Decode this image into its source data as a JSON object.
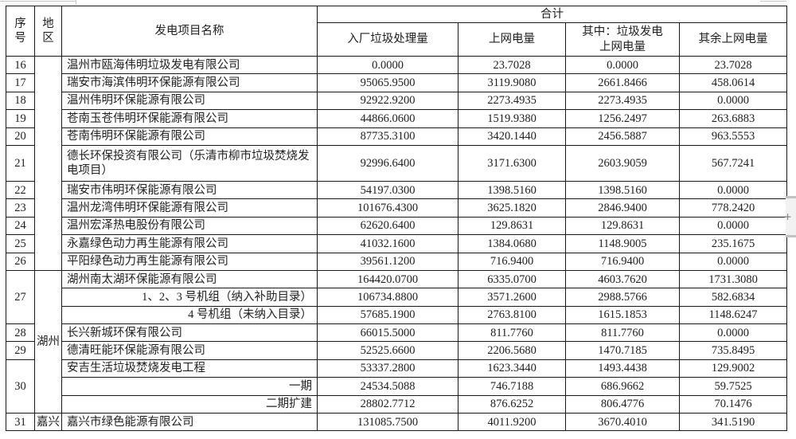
{
  "table": {
    "headers": {
      "seq": "序号",
      "region": "地区",
      "project": "发电项目名称",
      "total": "合计",
      "sub": [
        "入厂垃圾处理量",
        "上网电量",
        "其中：垃圾发电\n上网电量",
        "其余上网电量"
      ]
    },
    "rows": [
      {
        "seq": "16",
        "region": "",
        "regionSpan": 11,
        "name": "温州市瓯海伟明垃圾发电有限公司",
        "values": [
          "0.0000",
          "23.7028",
          "0.0000",
          "23.7028"
        ]
      },
      {
        "seq": "17",
        "name": "瑞安市海滨伟明环保能源有限公司",
        "values": [
          "95065.9500",
          "3119.9080",
          "2661.8466",
          "458.0614"
        ]
      },
      {
        "seq": "18",
        "name": "温州伟明环保能源有限公司",
        "values": [
          "92922.9200",
          "2273.4935",
          "2273.4935",
          "0.0000"
        ]
      },
      {
        "seq": "19",
        "name": "苍南玉苍伟明环保能源有限公司",
        "values": [
          "44866.0600",
          "1519.9380",
          "1256.2497",
          "263.6883"
        ]
      },
      {
        "seq": "20",
        "name": "苍南伟明环保能源有限公司",
        "values": [
          "87735.3100",
          "3420.1440",
          "2456.5887",
          "963.5553"
        ]
      },
      {
        "seq": "21",
        "tall": true,
        "name": "德长环保投资有限公司（乐清市柳市垃圾焚烧发电项目）",
        "values": [
          "92996.6400",
          "3171.6300",
          "2603.9059",
          "567.7241"
        ]
      },
      {
        "seq": "22",
        "name": "瑞安市伟明环保能源有限公司",
        "values": [
          "54197.0300",
          "1398.5160",
          "1398.5160",
          "0.0000"
        ]
      },
      {
        "seq": "23",
        "name": "温州龙湾伟明环保能源有限公司",
        "values": [
          "101676.4300",
          "3625.1820",
          "2846.9400",
          "778.2420"
        ]
      },
      {
        "seq": "24",
        "name": "温州宏泽热电股份有限公司",
        "values": [
          "62620.6400",
          "129.8631",
          "129.8631",
          "0.0000"
        ]
      },
      {
        "seq": "25",
        "name": "永嘉绿色动力再生能源有限公司",
        "values": [
          "41032.1600",
          "1384.0680",
          "1148.9005",
          "235.1675"
        ]
      },
      {
        "seq": "26",
        "name": "平阳绿色动力再生能源有限公司",
        "values": [
          "39561.1200",
          "716.9400",
          "716.9400",
          "0.0000"
        ]
      },
      {
        "seq": "27",
        "seqSpan": 3,
        "region": "湖州",
        "regionSpan": 8,
        "name": "湖州南太湖环保能源有限公司",
        "values": [
          "164420.0700",
          "6335.0700",
          "4603.7620",
          "1731.3080"
        ]
      },
      {
        "name": "1、2、3 号机组（纳入补助目录）",
        "nameAlign": "right",
        "values": [
          "106734.8800",
          "3571.2600",
          "2988.5766",
          "582.6834"
        ]
      },
      {
        "name": "4 号机组（未纳入目录）",
        "nameAlign": "right",
        "values": [
          "57685.1900",
          "2763.8100",
          "1615.1853",
          "1148.6247"
        ]
      },
      {
        "seq": "28",
        "name": "长兴新城环保有限公司",
        "values": [
          "66015.5000",
          "811.7760",
          "811.7760",
          "0.0000"
        ]
      },
      {
        "seq": "29",
        "name": "德清旺能环保能源有限公司",
        "values": [
          "52525.6600",
          "2206.5680",
          "1470.7185",
          "735.8495"
        ]
      },
      {
        "seq": "30",
        "seqSpan": 3,
        "name": "安吉生活垃圾焚烧发电工程",
        "values": [
          "53337.2800",
          "1623.3440",
          "1493.4438",
          "129.9002"
        ]
      },
      {
        "name": "一期",
        "nameAlign": "right",
        "values": [
          "24534.5088",
          "746.7188",
          "686.9662",
          "59.7525"
        ]
      },
      {
        "name": "二期扩建",
        "nameAlign": "right",
        "values": [
          "28802.7712",
          "876.6252",
          "806.4776",
          "70.1476"
        ]
      },
      {
        "seq": "31",
        "region": "嘉兴",
        "regionSpan": 1,
        "name": "嘉兴市绿色能源有限公司",
        "values": [
          "131085.7500",
          "4011.9200",
          "3670.4010",
          "341.5190"
        ]
      }
    ]
  },
  "scrollbar": {
    "plus": "+"
  }
}
